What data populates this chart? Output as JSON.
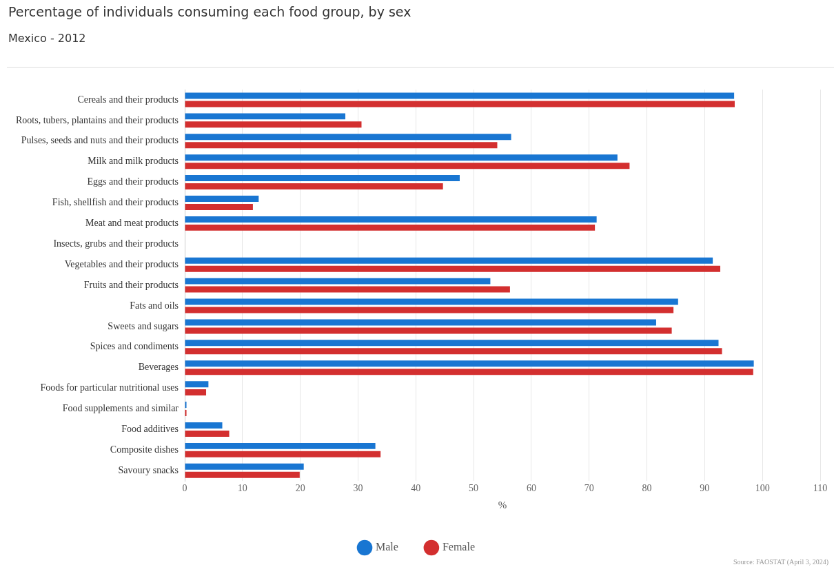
{
  "chart_data": {
    "type": "bar",
    "orientation": "horizontal",
    "title": "Percentage of individuals consuming each food group, by sex",
    "subtitle": "Mexico - 2012",
    "xlabel": "%",
    "categories": [
      "Cereals and their products",
      "Roots, tubers, plantains and their products",
      "Pulses, seeds and nuts and their products",
      "Milk and milk products",
      "Eggs and their products",
      "Fish, shellfish and their products",
      "Meat and meat products",
      "Insects, grubs and their products",
      "Vegetables and their products",
      "Fruits and their products",
      "Fats and oils",
      "Sweets and sugars",
      "Spices and condiments",
      "Beverages",
      "Foods for particular nutritional uses",
      "Food supplements and similar",
      "Food additives",
      "Composite dishes",
      "Savoury snacks"
    ],
    "series": [
      {
        "name": "Male",
        "color": "#1976d2",
        "values": [
          95.1,
          27.8,
          56.5,
          74.9,
          47.6,
          12.8,
          71.3,
          null,
          91.4,
          52.9,
          85.4,
          81.6,
          92.4,
          98.5,
          4.1,
          0.3,
          6.5,
          33.0,
          20.6
        ]
      },
      {
        "name": "Female",
        "color": "#d32f2f",
        "values": [
          95.2,
          30.6,
          54.1,
          77.0,
          44.7,
          11.8,
          71.0,
          null,
          92.7,
          56.3,
          84.6,
          84.3,
          93.0,
          98.4,
          3.7,
          0.3,
          7.7,
          33.9,
          19.9
        ]
      }
    ],
    "xlim": [
      0,
      110
    ],
    "xticks": [
      0,
      10,
      20,
      30,
      40,
      50,
      60,
      70,
      80,
      90,
      100,
      110
    ],
    "grid": "x",
    "legend": "bottom",
    "annotations": [
      "Source: FAOSTAT (April 3, 2024)"
    ]
  }
}
